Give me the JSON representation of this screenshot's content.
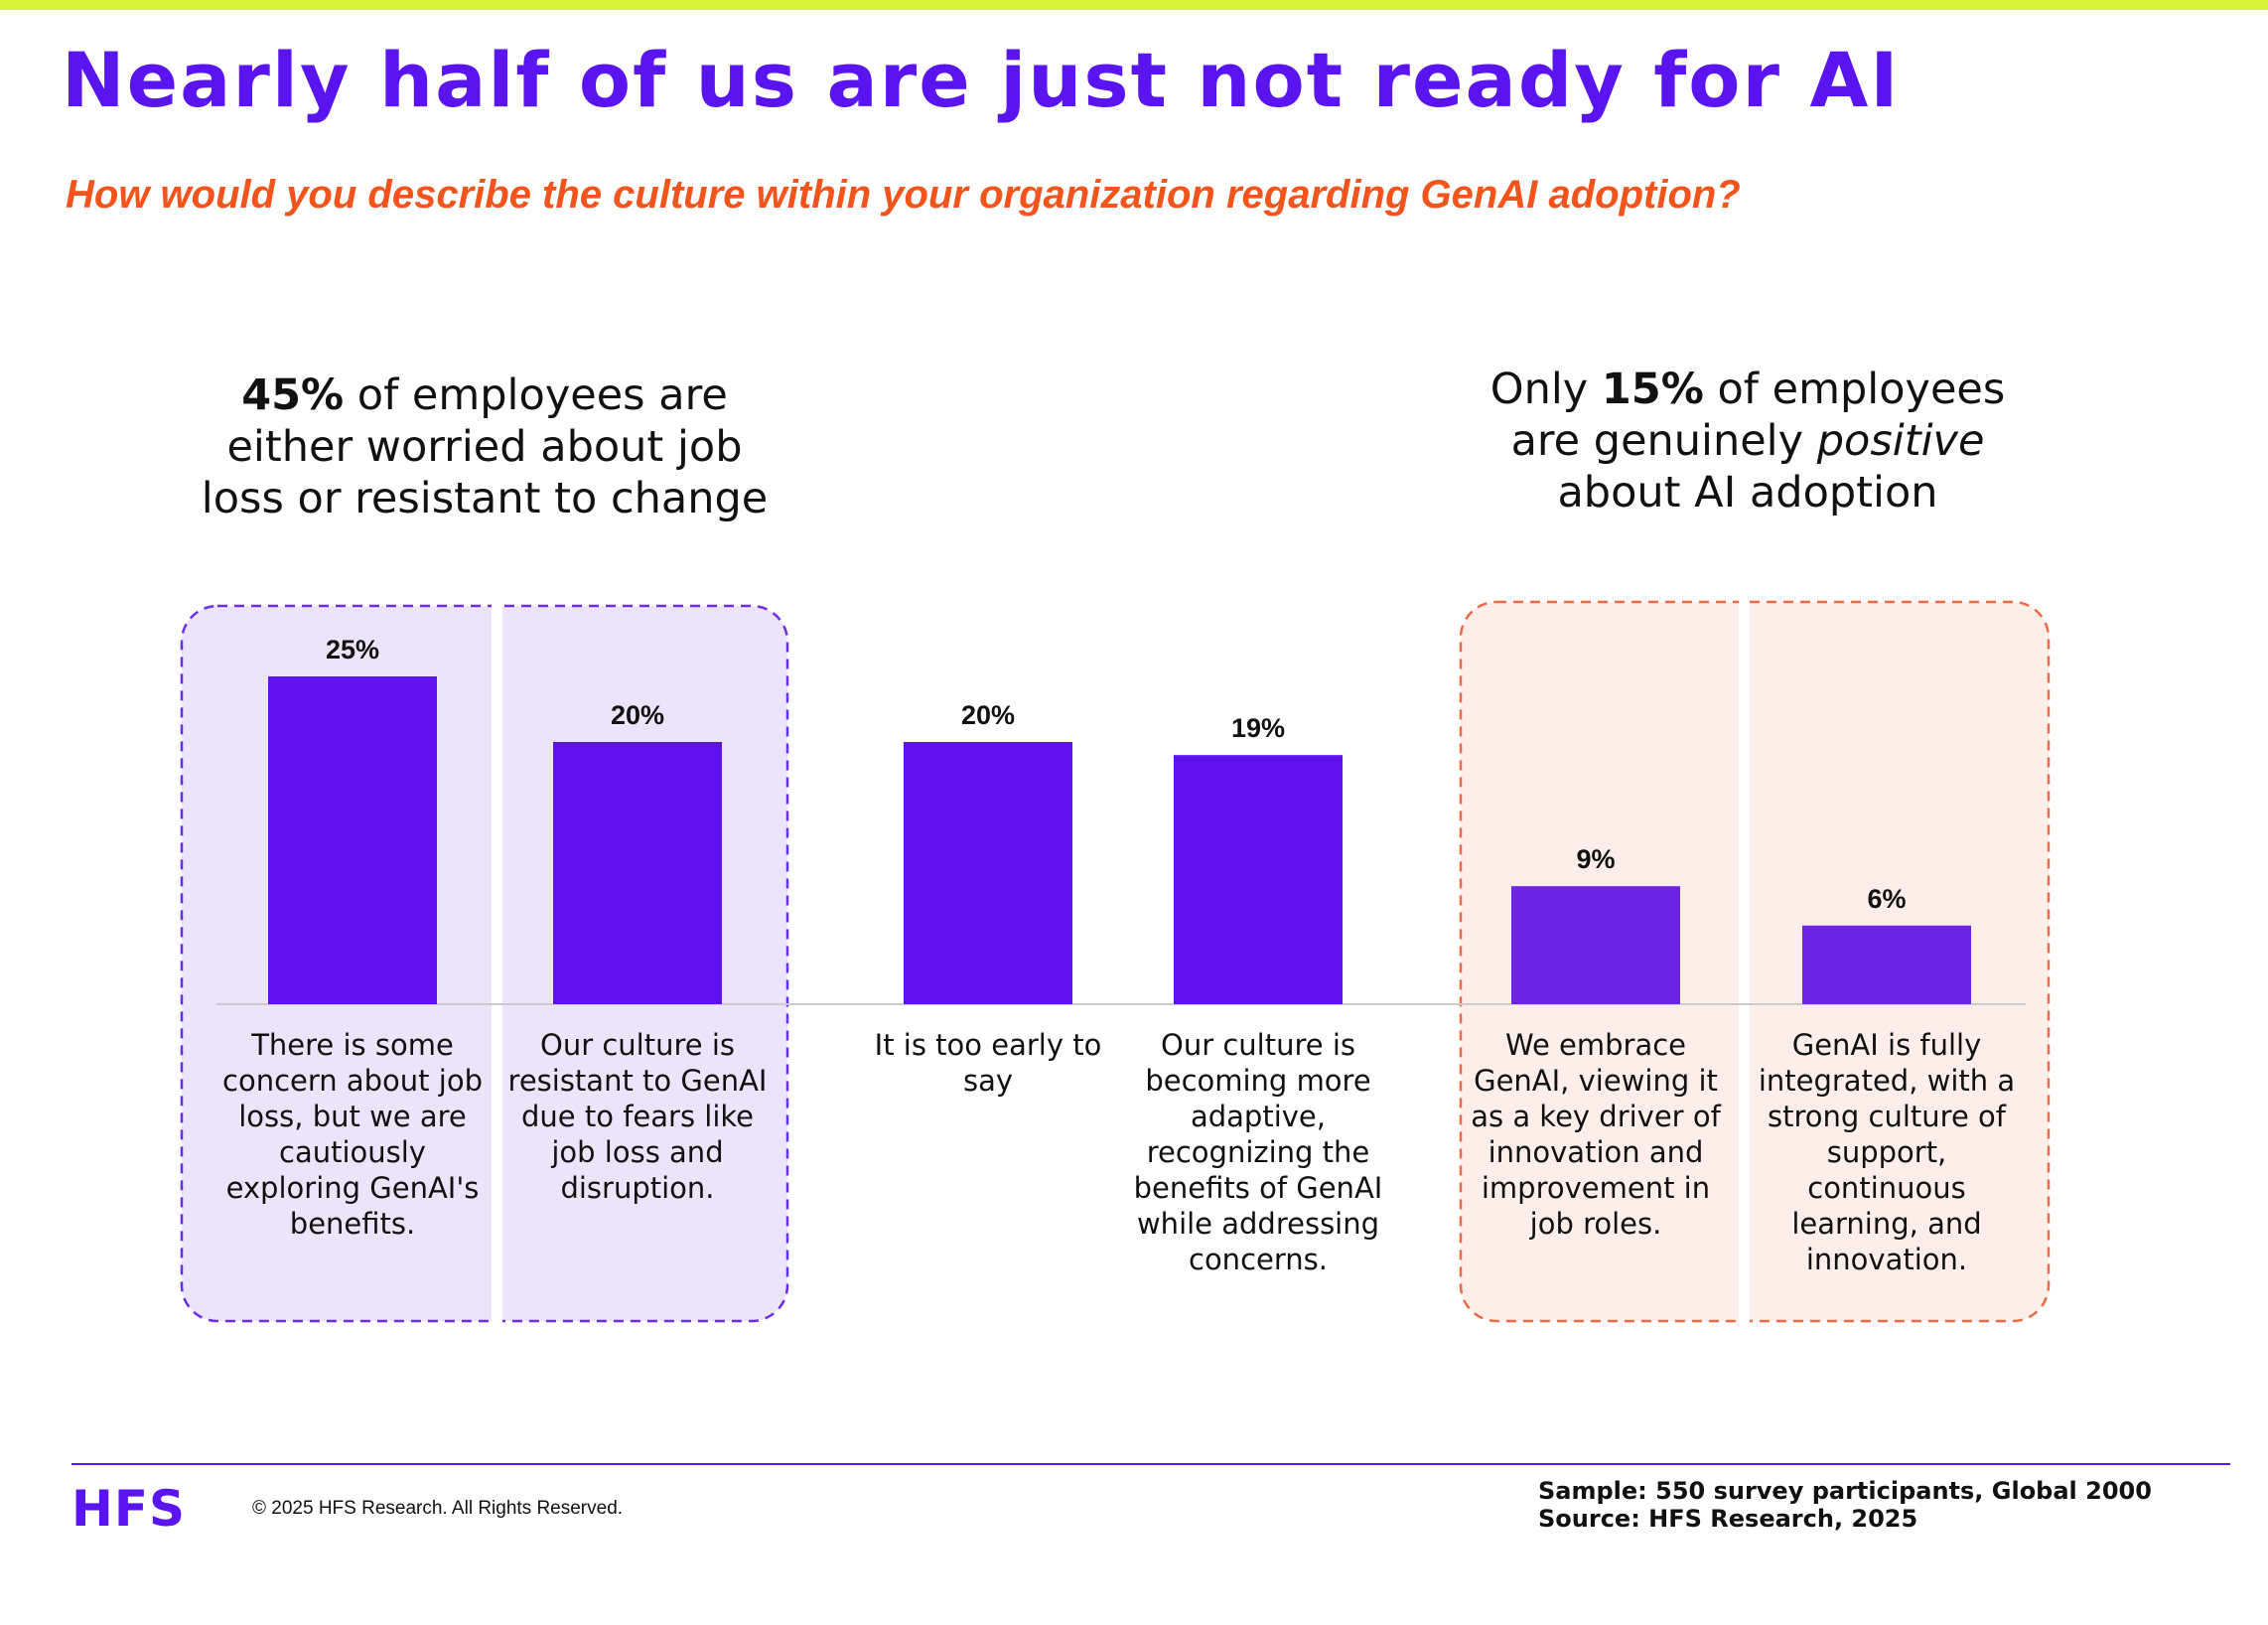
{
  "theme": {
    "accent_bar": "#d9f53a",
    "title_color": "#5a14f0",
    "subtitle_color": "#f2541b",
    "bar_color": "#5f12ee",
    "bar_color_light": "#6b24e3",
    "left_group_fill": "#ece4fb",
    "left_group_border": "#6a2ee8",
    "right_group_fill": "#fdeee9",
    "right_group_border": "#ee6a44",
    "baseline": "#cccccc",
    "logo_color": "#5a14f0",
    "footer_line": "#5a14f0"
  },
  "header": {
    "title": "Nearly half of us are just not ready for AI",
    "subtitle": "How would you describe the culture within your organization regarding GenAI adoption?"
  },
  "callouts": {
    "left": {
      "strong": "45%",
      "rest": " of employees are either worried about job loss or resistant to change"
    },
    "right": {
      "pre": "Only ",
      "strong": "15%",
      "mid": " of employees are genuinely ",
      "em": "positive",
      "post": " about AI adoption"
    }
  },
  "chart_data": {
    "type": "bar",
    "categories": [
      "There is some concern about job loss, but we are cautiously exploring GenAI's benefits.",
      "Our culture is resistant to GenAI due to fears like job loss and disruption.",
      "It is too early to say",
      "Our culture is becoming more adaptive, recognizing the benefits of GenAI while addressing concerns.",
      "We embrace GenAI, viewing it as a key driver of innovation and improvement in job roles.",
      "GenAI is fully integrated, with a strong culture of support, continuous learning, and innovation."
    ],
    "values": [
      25,
      20,
      20,
      19,
      9,
      6
    ],
    "value_labels": [
      "25%",
      "20%",
      "20%",
      "19%",
      "9%",
      "6%"
    ],
    "ylim": [
      0,
      25
    ],
    "grid": false,
    "groups": [
      {
        "members": [
          0,
          1
        ],
        "style": "purple-dashed"
      },
      {
        "members": [
          4,
          5
        ],
        "style": "orange-dashed"
      }
    ]
  },
  "footer": {
    "logo": "HFS",
    "copyright": "© 2025 HFS Research. All Rights Reserved.",
    "sample": "Sample: 550 survey participants, Global 2000",
    "source": "Source: HFS Research, 2025"
  }
}
